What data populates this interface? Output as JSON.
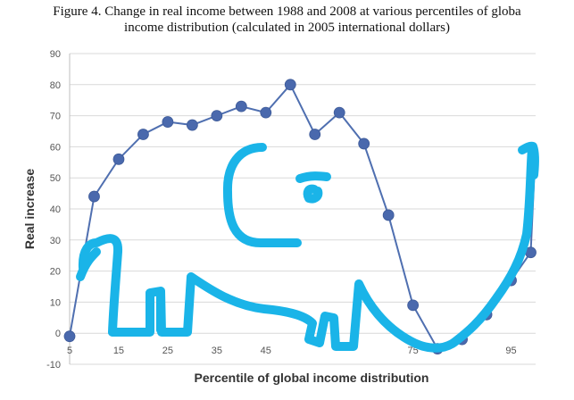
{
  "figure": {
    "title_line1": "Figure 4. Change in real income between 1988 and 2008 at various percentiles of globa",
    "title_line2": "income distribution (calculated in 2005 international dollars)"
  },
  "colors": {
    "line": "#4f6fb0",
    "marker": "#4a69ad",
    "grid": "#d9d9d9",
    "axis_text": "#555555",
    "drawing": "#1ab4e8"
  },
  "chart_data": {
    "type": "line",
    "xlabel": "Percentile of global income distribution",
    "ylabel": "Real increase",
    "xlim": [
      5,
      100
    ],
    "ylim": [
      -10,
      90
    ],
    "yticks": [
      -10,
      0,
      10,
      20,
      30,
      40,
      50,
      60,
      70,
      80,
      90
    ],
    "xticks": [
      5,
      15,
      25,
      35,
      45,
      75,
      95
    ],
    "grid": "horizontal",
    "legend": "none",
    "series": [
      {
        "x": [
          5,
          10,
          15,
          20,
          25,
          30,
          35,
          40,
          45,
          50,
          55,
          60,
          65,
          70,
          75,
          80,
          85,
          90,
          95,
          99
        ],
        "values": [
          -1,
          44,
          56,
          64,
          68,
          67,
          70,
          73,
          71,
          80,
          64,
          71,
          61,
          38,
          9,
          -5,
          -2,
          6,
          17,
          26
        ]
      },
      {
        "x": [
          99,
          100
        ],
        "values": [
          26,
          60
        ]
      }
    ],
    "overlay": {
      "type": "hand-drawn-elephant-outline",
      "color": "#1ab4e8"
    }
  }
}
